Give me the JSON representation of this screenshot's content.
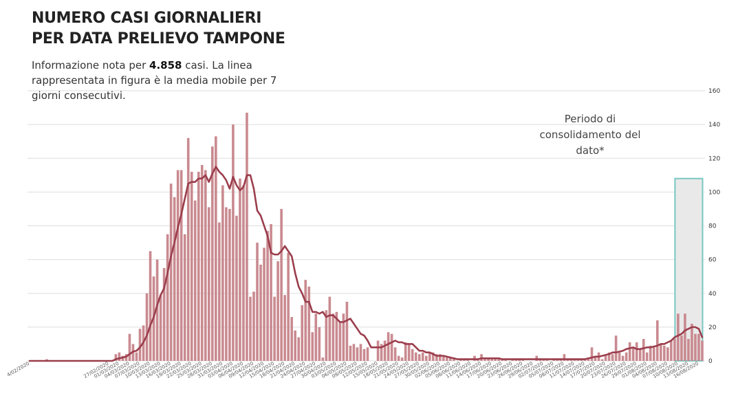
{
  "title_lines": [
    "NUMERO CASI GIORNALIERI",
    "PER DATA PRELIEVO TAMPONE"
  ],
  "subtitle": {
    "prefix": "Informazione nota per ",
    "highlight": "4.858",
    "suffix": "  casi. La linea rappresentata in figura è la media mobile per 7 giorni consecutivi."
  },
  "annotation": "Periodo di consolidamento del dato*",
  "colors": {
    "bar": "#c98a90",
    "line": "#9b3d4c",
    "grid": "#dddddd",
    "highlight_border": "#79c7c2",
    "highlight_fill": "#e9e9e9"
  },
  "chart_data": {
    "type": "bar",
    "title": "NUMERO CASI GIORNALIERI PER DATA PRELIEVO TAMPONE",
    "xlabel": "",
    "ylabel": "",
    "ylim": [
      0,
      160
    ],
    "yticks": [
      0,
      20,
      40,
      60,
      80,
      100,
      120,
      140,
      160
    ],
    "grid": true,
    "start_date": "2020-02-04",
    "x_tick_labels": [
      "4/02/2020",
      "27/02/2020",
      "01/03/2020",
      "04/03/2020",
      "07/03/2020",
      "10/03/2020",
      "13/03/2020",
      "16/03/2020",
      "19/03/2020",
      "22/03/2020",
      "25/03/2020",
      "28/03/2020",
      "31/03/2020",
      "03/04/2020",
      "06/04/2020",
      "09/04/2020",
      "12/04/2020",
      "15/04/2020",
      "18/04/2020",
      "21/04/2020",
      "24/04/2020",
      "27/04/2020",
      "30/04/2020",
      "03/05/2020",
      "06/05/2020",
      "09/05/2020",
      "12/05/2020",
      "15/05/2020",
      "18/05/2020",
      "21/05/2020",
      "24/05/2020",
      "27/05/2020",
      "30/05/2020",
      "02/06/2020",
      "05/06/2020",
      "08/06/2020",
      "11/06/2020",
      "14/06/2020",
      "17/06/2020",
      "20/06/2020",
      "23/06/2020",
      "26/06/2020",
      "29/06/2020",
      "02/07/2020",
      "05/07/2020",
      "08/07/2020",
      "11/07/2020",
      "14/07/2020",
      "17/07/2020",
      "20/07/2020",
      "23/07/2020",
      "26/07/2020",
      "29/07/2020",
      "01/08/2020",
      "04/08/2020",
      "07/08/2020",
      "10/08/2020",
      "13/08/2020",
      "16/08/2020"
    ],
    "tick_label_days": [
      0,
      23,
      26,
      29,
      32,
      35,
      38,
      41,
      44,
      47,
      50,
      53,
      56,
      59,
      62,
      65,
      68,
      71,
      74,
      77,
      80,
      83,
      86,
      89,
      92,
      95,
      98,
      101,
      104,
      107,
      110,
      113,
      116,
      119,
      122,
      125,
      128,
      131,
      134,
      137,
      140,
      143,
      146,
      149,
      152,
      155,
      158,
      161,
      164,
      167,
      170,
      173,
      176,
      179,
      182,
      185,
      188,
      191,
      194
    ],
    "series": [
      {
        "name": "Casi",
        "type": "bar",
        "values": [
          0,
          0,
          0,
          0,
          0,
          1,
          0,
          0,
          0,
          0,
          0,
          0,
          0,
          0,
          0,
          0,
          0,
          0,
          0,
          0,
          0,
          0,
          0,
          0,
          0,
          4,
          5,
          3,
          4,
          16,
          10,
          5,
          19,
          21,
          40,
          65,
          50,
          60,
          39,
          55,
          75,
          105,
          97,
          113,
          113,
          75,
          132,
          112,
          95,
          112,
          116,
          113,
          91,
          127,
          133,
          82,
          104,
          91,
          90,
          140,
          86,
          108,
          104,
          147,
          38,
          41,
          70,
          57,
          67,
          77,
          81,
          38,
          59,
          90,
          39,
          64,
          26,
          18,
          14,
          33,
          48,
          44,
          17,
          28,
          20,
          2,
          30,
          38,
          28,
          29,
          23,
          28,
          35,
          9,
          10,
          8,
          10,
          7,
          8,
          0,
          0,
          12,
          10,
          12,
          17,
          16,
          8,
          3,
          2,
          11,
          10,
          7,
          5,
          4,
          5,
          3,
          5,
          5,
          4,
          4,
          3,
          2,
          2,
          1,
          0,
          1,
          1,
          1,
          0,
          3,
          1,
          4,
          1,
          2,
          1,
          2,
          1,
          1,
          1,
          0,
          1,
          1,
          1,
          1,
          0,
          0,
          0,
          3,
          1,
          1,
          1,
          0,
          1,
          1,
          1,
          4,
          1,
          1,
          1,
          1,
          1,
          1,
          1,
          8,
          3,
          5,
          1,
          3,
          5,
          4,
          15,
          5,
          3,
          5,
          11,
          8,
          11,
          7,
          13,
          5,
          9,
          8,
          24,
          10,
          9,
          8,
          12,
          13,
          28,
          15,
          28,
          13,
          22,
          16,
          16,
          12
        ]
      },
      {
        "name": "Media mobile 7 giorni",
        "type": "line",
        "values": [
          0,
          0,
          0,
          0,
          0,
          0,
          0,
          0,
          0,
          0,
          0,
          0,
          0,
          0,
          0,
          0,
          0,
          0,
          0,
          0,
          0,
          0,
          0,
          0,
          0,
          1,
          1.5,
          2,
          2.5,
          4,
          5.5,
          6,
          8,
          11,
          15,
          21,
          26,
          33,
          39,
          43,
          52,
          62,
          70,
          79,
          87,
          96,
          105,
          106,
          106,
          108,
          108,
          110,
          106,
          111,
          115,
          112,
          110,
          107,
          102,
          109,
          104,
          101,
          103,
          110,
          110,
          102,
          89,
          86,
          80,
          74,
          64,
          63,
          63,
          65,
          68,
          65,
          62,
          52,
          44,
          40,
          35,
          35,
          29,
          29,
          28,
          29,
          26,
          27,
          27,
          25,
          23,
          23,
          24,
          25,
          22,
          19,
          16,
          15,
          12,
          8,
          8,
          8,
          8,
          9,
          10,
          11,
          12,
          11,
          11,
          10,
          10,
          10,
          8,
          6,
          6,
          5,
          5,
          4,
          3,
          3,
          3,
          2.5,
          2,
          1.5,
          1,
          1,
          1,
          1,
          1,
          1,
          1,
          1.5,
          1.5,
          1.5,
          1.5,
          1.5,
          1.5,
          1,
          1,
          1,
          1,
          1,
          1,
          1,
          1,
          1,
          1,
          1,
          1,
          1,
          1,
          1,
          1,
          1,
          1,
          1,
          1,
          1,
          1,
          1,
          1,
          1,
          1.5,
          2,
          2.5,
          2.5,
          3,
          3.5,
          4,
          5,
          5,
          5.5,
          6,
          7,
          7.5,
          8,
          7,
          7,
          7.5,
          8,
          8,
          8.5,
          9,
          10,
          10,
          11,
          12,
          14,
          15,
          16,
          18,
          19,
          20,
          20,
          19,
          14
        ]
      }
    ],
    "highlight_period": {
      "label": "Periodo di consolidamento del dato*",
      "from_day": 188,
      "to_day": 194
    }
  }
}
